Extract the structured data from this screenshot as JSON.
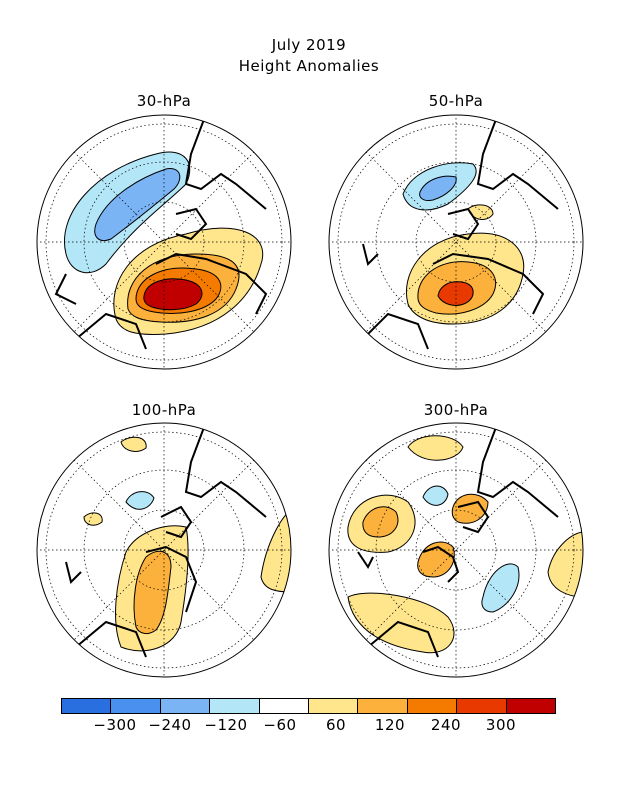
{
  "title": {
    "line1": "July 2019",
    "line2": "Height Anomalies"
  },
  "panels": [
    {
      "label": "30-hPa"
    },
    {
      "label": "50-hPa"
    },
    {
      "label": "100-hPa"
    },
    {
      "label": "300-hPa"
    }
  ],
  "colorbar": {
    "colors": [
      "#2a6fe0",
      "#4a90ee",
      "#7bb4f5",
      "#b3e6f7",
      "#ffffff",
      "#ffe58c",
      "#fbb13c",
      "#f57a00",
      "#e83a00",
      "#c00000"
    ],
    "tick_labels": [
      "−300",
      "−240",
      "−120",
      "−60",
      "60",
      "120",
      "240",
      "300"
    ]
  }
}
